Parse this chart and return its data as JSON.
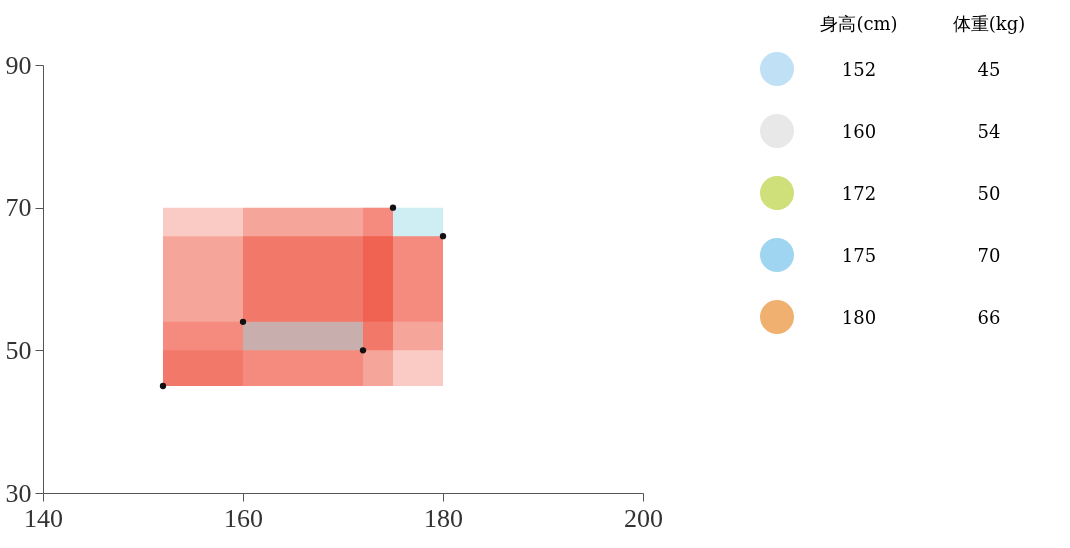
{
  "chart_data": {
    "type": "scatter",
    "annotations": [
      "身高(cm)",
      "体重(kg)",
      "152",
      "45",
      "160",
      "54",
      "172",
      "50",
      "175",
      "70",
      "180",
      "66"
    ],
    "series": [
      {
        "color": "#111111",
        "x": [
          152,
          160,
          172,
          175,
          180
        ],
        "values": [
          45,
          54,
          50,
          70,
          66
        ]
      }
    ],
    "xlim": [
      140,
      200
    ],
    "xticks": [
      140,
      160,
      180,
      200
    ],
    "ylim": [
      30,
      90
    ],
    "yticks": [
      30,
      50,
      70,
      90
    ],
    "marker": "circle"
  }
}
